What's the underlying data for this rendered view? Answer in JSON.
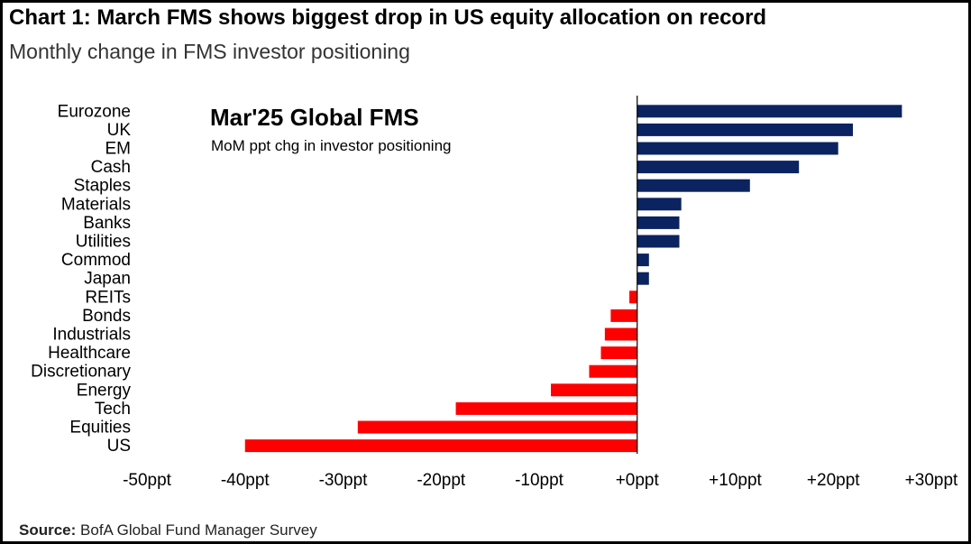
{
  "title": "Chart 1: March FMS shows biggest drop in US equity allocation on record",
  "subtitle": "Monthly change in FMS investor positioning",
  "source": {
    "label": "Source:",
    "text": " BofA Global Fund Manager Survey"
  },
  "colors": {
    "positive": "#0b2360",
    "negative": "#ff0000",
    "axis": "#000000"
  },
  "chart_data": {
    "type": "bar",
    "orientation": "horizontal",
    "inset_title": "Mar'25 Global FMS",
    "inset_subtitle": "MoM ppt chg in investor positioning",
    "categories": [
      "Eurozone",
      "UK",
      "EM",
      "Cash",
      "Staples",
      "Materials",
      "Banks",
      "Utilities",
      "Commod",
      "Japan",
      "REITs",
      "Bonds",
      "Industrials",
      "Healthcare",
      "Discretionary",
      "Energy",
      "Tech",
      "Equities",
      "US"
    ],
    "values": [
      27,
      22,
      20.5,
      16.5,
      11.5,
      4.5,
      4.3,
      4.3,
      1.2,
      1.2,
      -0.8,
      -2.7,
      -3.3,
      -3.7,
      -4.9,
      -8.8,
      -18.5,
      -28.5,
      -40
    ],
    "x_ticks": [
      "-50ppt",
      "-40ppt",
      "-30ppt",
      "-20ppt",
      "-10ppt",
      "+0ppt",
      "+10ppt",
      "+20ppt",
      "+30ppt"
    ],
    "x_tick_values": [
      -50,
      -40,
      -30,
      -20,
      -10,
      0,
      10,
      20,
      30
    ],
    "xlim": [
      -50,
      30
    ],
    "grid": false
  }
}
